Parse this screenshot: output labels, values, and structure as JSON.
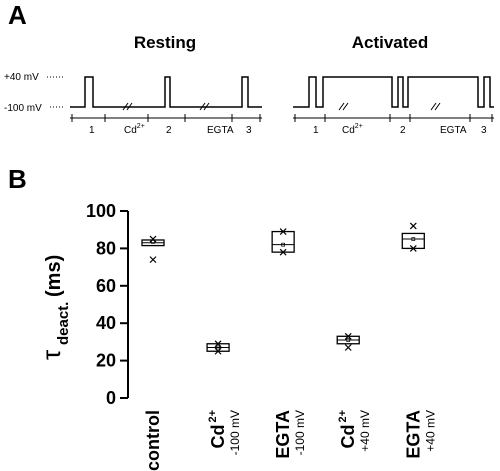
{
  "panel_a": {
    "label": "A",
    "resting_title": "Resting",
    "activated_title": "Activated",
    "level_high": "+40 mV",
    "level_low": "-100 mV",
    "resting_steps": [
      "1",
      "Cd",
      "2",
      "EGTA",
      "3"
    ],
    "resting_step_superscripts": [
      null,
      "2+",
      null,
      null,
      null
    ],
    "activated_steps": [
      "1",
      "Cd",
      "2",
      "EGTA",
      "3"
    ],
    "activated_step_superscripts": [
      null,
      "2+",
      null,
      null,
      null
    ]
  },
  "chart_data": {
    "type": "box",
    "panel_label": "B",
    "y_label_symbol": "τ",
    "y_label_subscript": "deact.",
    "y_label_unit": "(ms)",
    "categories": [
      "control",
      "Cd",
      "EGTA",
      "Cd",
      "EGTA"
    ],
    "category_superscripts": [
      null,
      "2+",
      null,
      "2+",
      null
    ],
    "category_sublabels": [
      null,
      "-100 mV",
      "-100 mV",
      "+40 mV",
      "+40 mV"
    ],
    "boxes": [
      {
        "q1": 81.5,
        "median": 83,
        "q3": 84.5,
        "mean": 83.5,
        "points": [
          85,
          74
        ]
      },
      {
        "q1": 25,
        "median": 27,
        "q3": 29,
        "mean": 27,
        "points": [
          29,
          25
        ]
      },
      {
        "q1": 78,
        "median": 82,
        "q3": 89,
        "mean": 82,
        "points": [
          89,
          78
        ]
      },
      {
        "q1": 29,
        "median": 31,
        "q3": 33,
        "mean": 31,
        "points": [
          33,
          27
        ]
      },
      {
        "q1": 80,
        "median": 85,
        "q3": 88,
        "mean": 85,
        "points": [
          92,
          80
        ]
      }
    ],
    "ylim": [
      0,
      100
    ],
    "yticks": [
      0,
      20,
      40,
      60,
      80,
      100
    ],
    "color": "#000000"
  }
}
